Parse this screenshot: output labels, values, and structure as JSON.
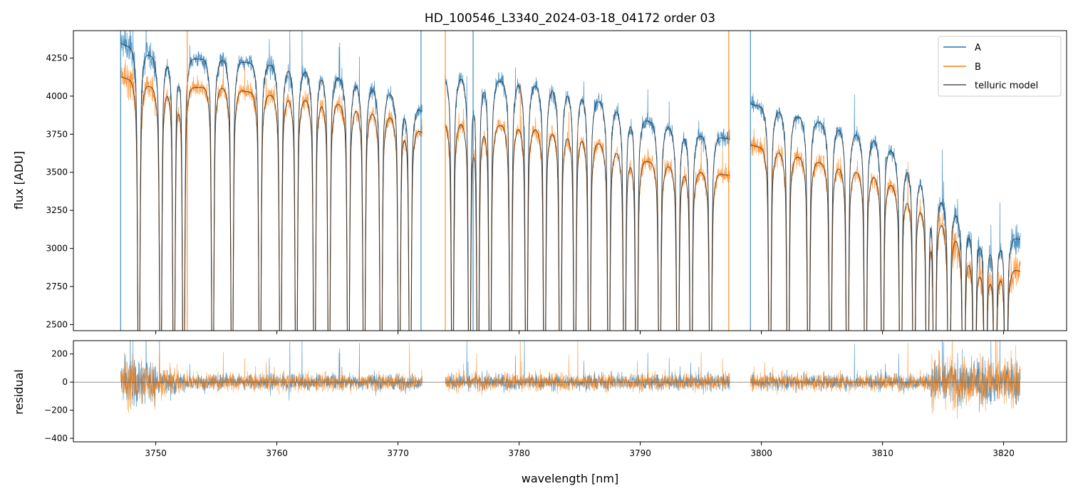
{
  "chart_data": [
    {
      "type": "line",
      "title": "HD_100546_L3340_2024-03-18_04172  order 03",
      "ylabel": "flux [ADU]",
      "xlim": [
        3743.2,
        3825.2
      ],
      "ylim": [
        2460,
        4430
      ],
      "yticks": [
        "2500",
        "2750",
        "3000",
        "3250",
        "3500",
        "3750",
        "4000",
        "4250"
      ],
      "xticks": [
        "3750",
        "3760",
        "3770",
        "3780",
        "3790",
        "3800",
        "3810",
        "3820"
      ],
      "legend": {
        "placement": "top-right",
        "entries": [
          "A",
          "B",
          "telluric model"
        ]
      },
      "colors": {
        "A": "#1f77b4",
        "B": "#ff7f0e",
        "telluric model": "#333333"
      },
      "segments": [
        [
          3747.1,
          3772.0
        ],
        [
          3773.9,
          3797.4
        ],
        [
          3799.1,
          3821.4
        ]
      ],
      "continuum": {
        "x": [
          3747,
          3750,
          3755,
          3760,
          3765,
          3770,
          3772,
          3774,
          3780,
          3785,
          3790,
          3795,
          3797.4,
          3799.1,
          3805,
          3810,
          3815,
          3818,
          3821.4
        ],
        "A": [
          4350,
          4250,
          4240,
          4200,
          4120,
          4000,
          3900,
          4130,
          4090,
          4020,
          3850,
          3740,
          3720,
          3950,
          3820,
          3700,
          3320,
          3100,
          3060
        ],
        "B": [
          4130,
          4050,
          4060,
          4000,
          3950,
          3850,
          3760,
          3830,
          3800,
          3740,
          3580,
          3500,
          3480,
          3680,
          3560,
          3460,
          3170,
          2900,
          2850
        ]
      },
      "absorption_lines_nm": [
        3748.6,
        3750.4,
        3751.5,
        3752.3,
        3754.7,
        3756.3,
        3758.6,
        3760.3,
        3761.6,
        3763.1,
        3764.3,
        3765.9,
        3767.2,
        3768.6,
        3770.1,
        3771.0,
        3774.5,
        3775.9,
        3776.6,
        3777.6,
        3779.3,
        3780.6,
        3782.1,
        3783.4,
        3784.6,
        3785.8,
        3787.4,
        3788.7,
        3789.7,
        3791.6,
        3793.1,
        3794.2,
        3795.8,
        3800.7,
        3802.2,
        3803.9,
        3805.7,
        3807.1,
        3808.6,
        3810.0,
        3811.5,
        3812.6,
        3813.7,
        3814.3,
        3815.5,
        3816.7,
        3817.6,
        3818.5,
        3819.3,
        3820.2
      ],
      "spikes_nm": [
        3747.1,
        3752.6,
        3771.9,
        3773.9,
        3776.2,
        3797.3,
        3799.1
      ]
    },
    {
      "type": "line",
      "xlabel": "wavelength [nm]",
      "ylabel": "residual",
      "xlim": [
        3743.2,
        3825.2
      ],
      "ylim": [
        -425,
        295
      ],
      "yticks": [
        "−400",
        "−200",
        "0",
        "200"
      ],
      "xticks": [
        "3750",
        "3760",
        "3770",
        "3780",
        "3790",
        "3800",
        "3810",
        "3820"
      ],
      "zero_line": 0,
      "series": [
        {
          "name": "A",
          "color": "#1f77b4"
        },
        {
          "name": "B",
          "color": "#ff7f0e"
        }
      ]
    }
  ]
}
